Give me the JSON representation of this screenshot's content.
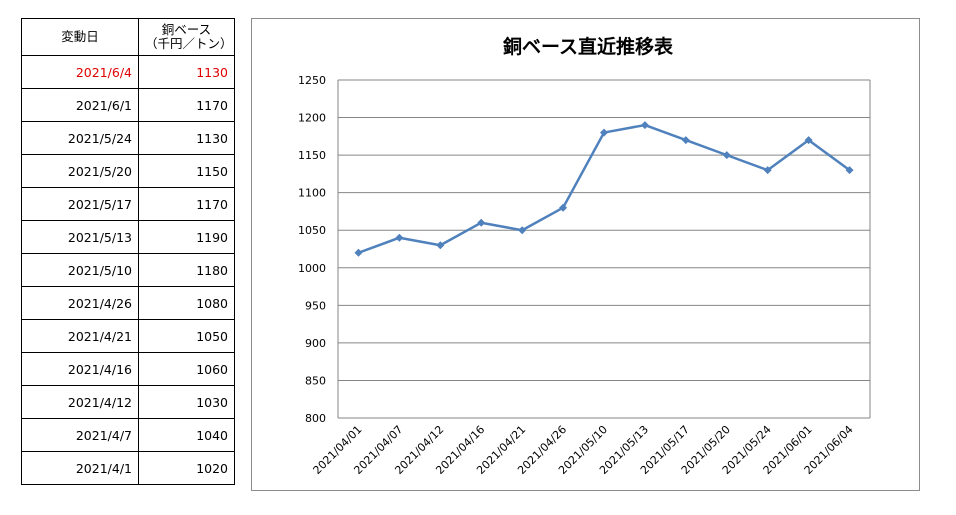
{
  "table": {
    "header": {
      "date": "変動日",
      "price_line1": "銅ベース",
      "price_line2": "（千円／トン）"
    },
    "rows": [
      {
        "date": "2021/6/4",
        "value": "1130"
      },
      {
        "date": "2021/6/1",
        "value": "1170"
      },
      {
        "date": "2021/5/24",
        "value": "1130"
      },
      {
        "date": "2021/5/20",
        "value": "1150"
      },
      {
        "date": "2021/5/17",
        "value": "1170"
      },
      {
        "date": "2021/5/13",
        "value": "1190"
      },
      {
        "date": "2021/5/10",
        "value": "1180"
      },
      {
        "date": "2021/4/26",
        "value": "1080"
      },
      {
        "date": "2021/4/21",
        "value": "1050"
      },
      {
        "date": "2021/4/16",
        "value": "1060"
      },
      {
        "date": "2021/4/12",
        "value": "1030"
      },
      {
        "date": "2021/4/7",
        "value": "1040"
      },
      {
        "date": "2021/4/1",
        "value": "1020"
      }
    ],
    "highlight_color": "#e00000"
  },
  "chart_data": {
    "type": "line",
    "title": "銅ベース直近推移表",
    "categories": [
      "2021/04/01",
      "2021/04/07",
      "2021/04/12",
      "2021/04/16",
      "2021/04/21",
      "2021/04/26",
      "2021/05/10",
      "2021/05/13",
      "2021/05/17",
      "2021/05/20",
      "2021/05/24",
      "2021/06/01",
      "2021/06/04"
    ],
    "series": [
      {
        "values": [
          1020,
          1040,
          1030,
          1060,
          1050,
          1080,
          1180,
          1190,
          1170,
          1150,
          1130,
          1170,
          1130
        ],
        "color": "#4f81bd"
      }
    ],
    "ylim": [
      800,
      1250
    ],
    "yticks": [
      800,
      850,
      900,
      950,
      1000,
      1050,
      1100,
      1150,
      1200,
      1250
    ],
    "grid": true,
    "legend": "none",
    "marker": "diamond"
  }
}
